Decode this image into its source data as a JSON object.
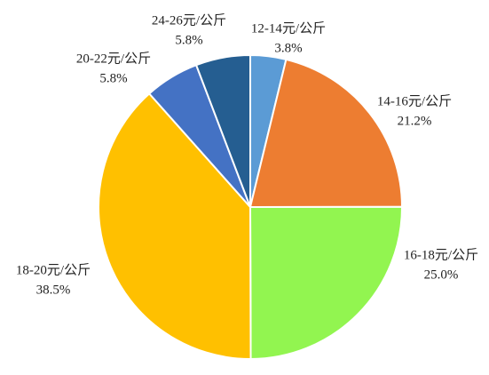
{
  "chart_data": {
    "type": "pie",
    "categories": [
      "12-14元/公斤",
      "14-16元/公斤",
      "16-18元/公斤",
      "18-20元/公斤",
      "20-22元/公斤",
      "24-26元/公斤"
    ],
    "values": [
      3.8,
      21.2,
      25.0,
      38.5,
      5.8,
      5.8
    ],
    "value_labels": [
      "3.8%",
      "21.2%",
      "25.0%",
      "38.5%",
      "5.8%",
      "5.8%"
    ],
    "colors": [
      "#5b9bd5",
      "#ed7d31",
      "#92f550",
      "#ffc000",
      "#4472c4",
      "#255e91"
    ]
  }
}
